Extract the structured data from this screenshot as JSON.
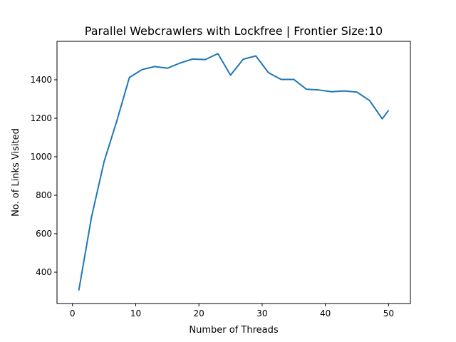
{
  "chart_data": {
    "type": "line",
    "title": "Parallel Webcrawlers with Lockfree | Frontier Size:10",
    "xlabel": "Number of Threads",
    "ylabel": "No. of Links Visited",
    "xlim": [
      -2.45,
      53.45
    ],
    "ylim": [
      237,
      1600
    ],
    "x_ticks": [
      0,
      10,
      20,
      30,
      40,
      50
    ],
    "y_ticks": [
      400,
      600,
      800,
      1000,
      1200,
      1400
    ],
    "grid": false,
    "legend": "none",
    "colors": {
      "line": "#1f77b4"
    },
    "series": [
      {
        "x": [
          1,
          3,
          5,
          7,
          9,
          11,
          13,
          15,
          17,
          19,
          21,
          23,
          25,
          27,
          29,
          31,
          33,
          35,
          37,
          39,
          41,
          43,
          45,
          47,
          49,
          50
        ],
        "y": [
          305,
          685,
          975,
          1185,
          1412,
          1453,
          1469,
          1460,
          1487,
          1508,
          1505,
          1536,
          1424,
          1507,
          1524,
          1437,
          1402,
          1402,
          1351,
          1347,
          1338,
          1342,
          1336,
          1292,
          1197,
          1242
        ]
      }
    ]
  }
}
